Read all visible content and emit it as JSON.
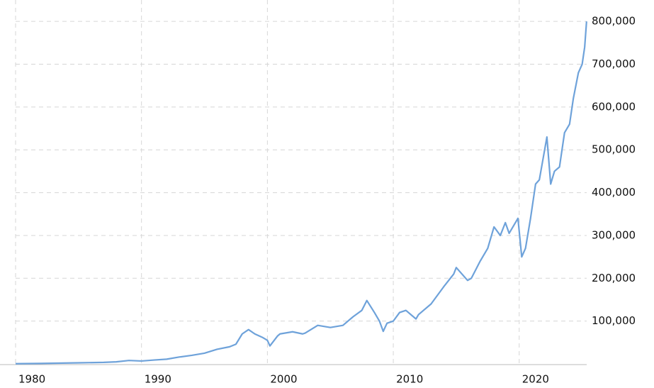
{
  "chart_data": {
    "type": "line",
    "x": [
      1980.0,
      1982.0,
      1985.0,
      1987.0,
      1988.0,
      1989.0,
      1990.0,
      1991.0,
      1992.0,
      1993.0,
      1994.0,
      1995.0,
      1996.0,
      1997.0,
      1997.5,
      1998.0,
      1998.5,
      1999.0,
      1999.6,
      2000.0,
      2000.2,
      2000.8,
      2001.0,
      2002.0,
      2002.8,
      2003.0,
      2004.0,
      2005.0,
      2006.0,
      2006.8,
      2007.5,
      2007.9,
      2008.5,
      2008.9,
      2009.2,
      2009.5,
      2010.0,
      2010.5,
      2011.0,
      2011.8,
      2012.0,
      2013.0,
      2014.0,
      2014.8,
      2015.0,
      2015.9,
      2016.2,
      2016.9,
      2017.5,
      2018.0,
      2018.5,
      2018.9,
      2019.2,
      2019.9,
      2020.2,
      2020.5,
      2020.9,
      2021.3,
      2021.6,
      2022.2,
      2022.5,
      2022.8,
      2023.2,
      2023.6,
      2024.0,
      2024.3,
      2024.7,
      2025.0,
      2025.2,
      2025.35
    ],
    "series": [
      {
        "color": "#6ea2da",
        "values": [
          400,
          1000,
          2500,
          3500,
          4800,
          8000,
          6700,
          9000,
          11000,
          16000,
          20000,
          25000,
          34000,
          40000,
          46000,
          70000,
          80000,
          70000,
          62000,
          55000,
          42000,
          65000,
          70000,
          75000,
          70000,
          72000,
          90000,
          85000,
          90000,
          110000,
          125000,
          148000,
          120000,
          100000,
          76000,
          95000,
          100000,
          120000,
          125000,
          105000,
          115000,
          140000,
          180000,
          210000,
          225000,
          195000,
          200000,
          240000,
          270000,
          320000,
          300000,
          330000,
          305000,
          340000,
          250000,
          270000,
          340000,
          420000,
          430000,
          530000,
          420000,
          450000,
          460000,
          540000,
          560000,
          620000,
          680000,
          700000,
          740000,
          800000
        ]
      }
    ],
    "xlim": [
      1980,
      2025.36
    ],
    "xticks": [
      1980,
      1990,
      2000,
      2010,
      2020
    ],
    "ylim": [
      0,
      850000
    ],
    "yticks": [
      {
        "value": 100000,
        "label": "100,000"
      },
      {
        "value": 200000,
        "label": "200,000"
      },
      {
        "value": 300000,
        "label": "300,000"
      },
      {
        "value": 400000,
        "label": "400,000"
      },
      {
        "value": 500000,
        "label": "500,000"
      },
      {
        "value": 600000,
        "label": "600,000"
      },
      {
        "value": 700000,
        "label": "700,000"
      },
      {
        "value": 800000,
        "label": "800,000"
      }
    ],
    "grid": true
  }
}
